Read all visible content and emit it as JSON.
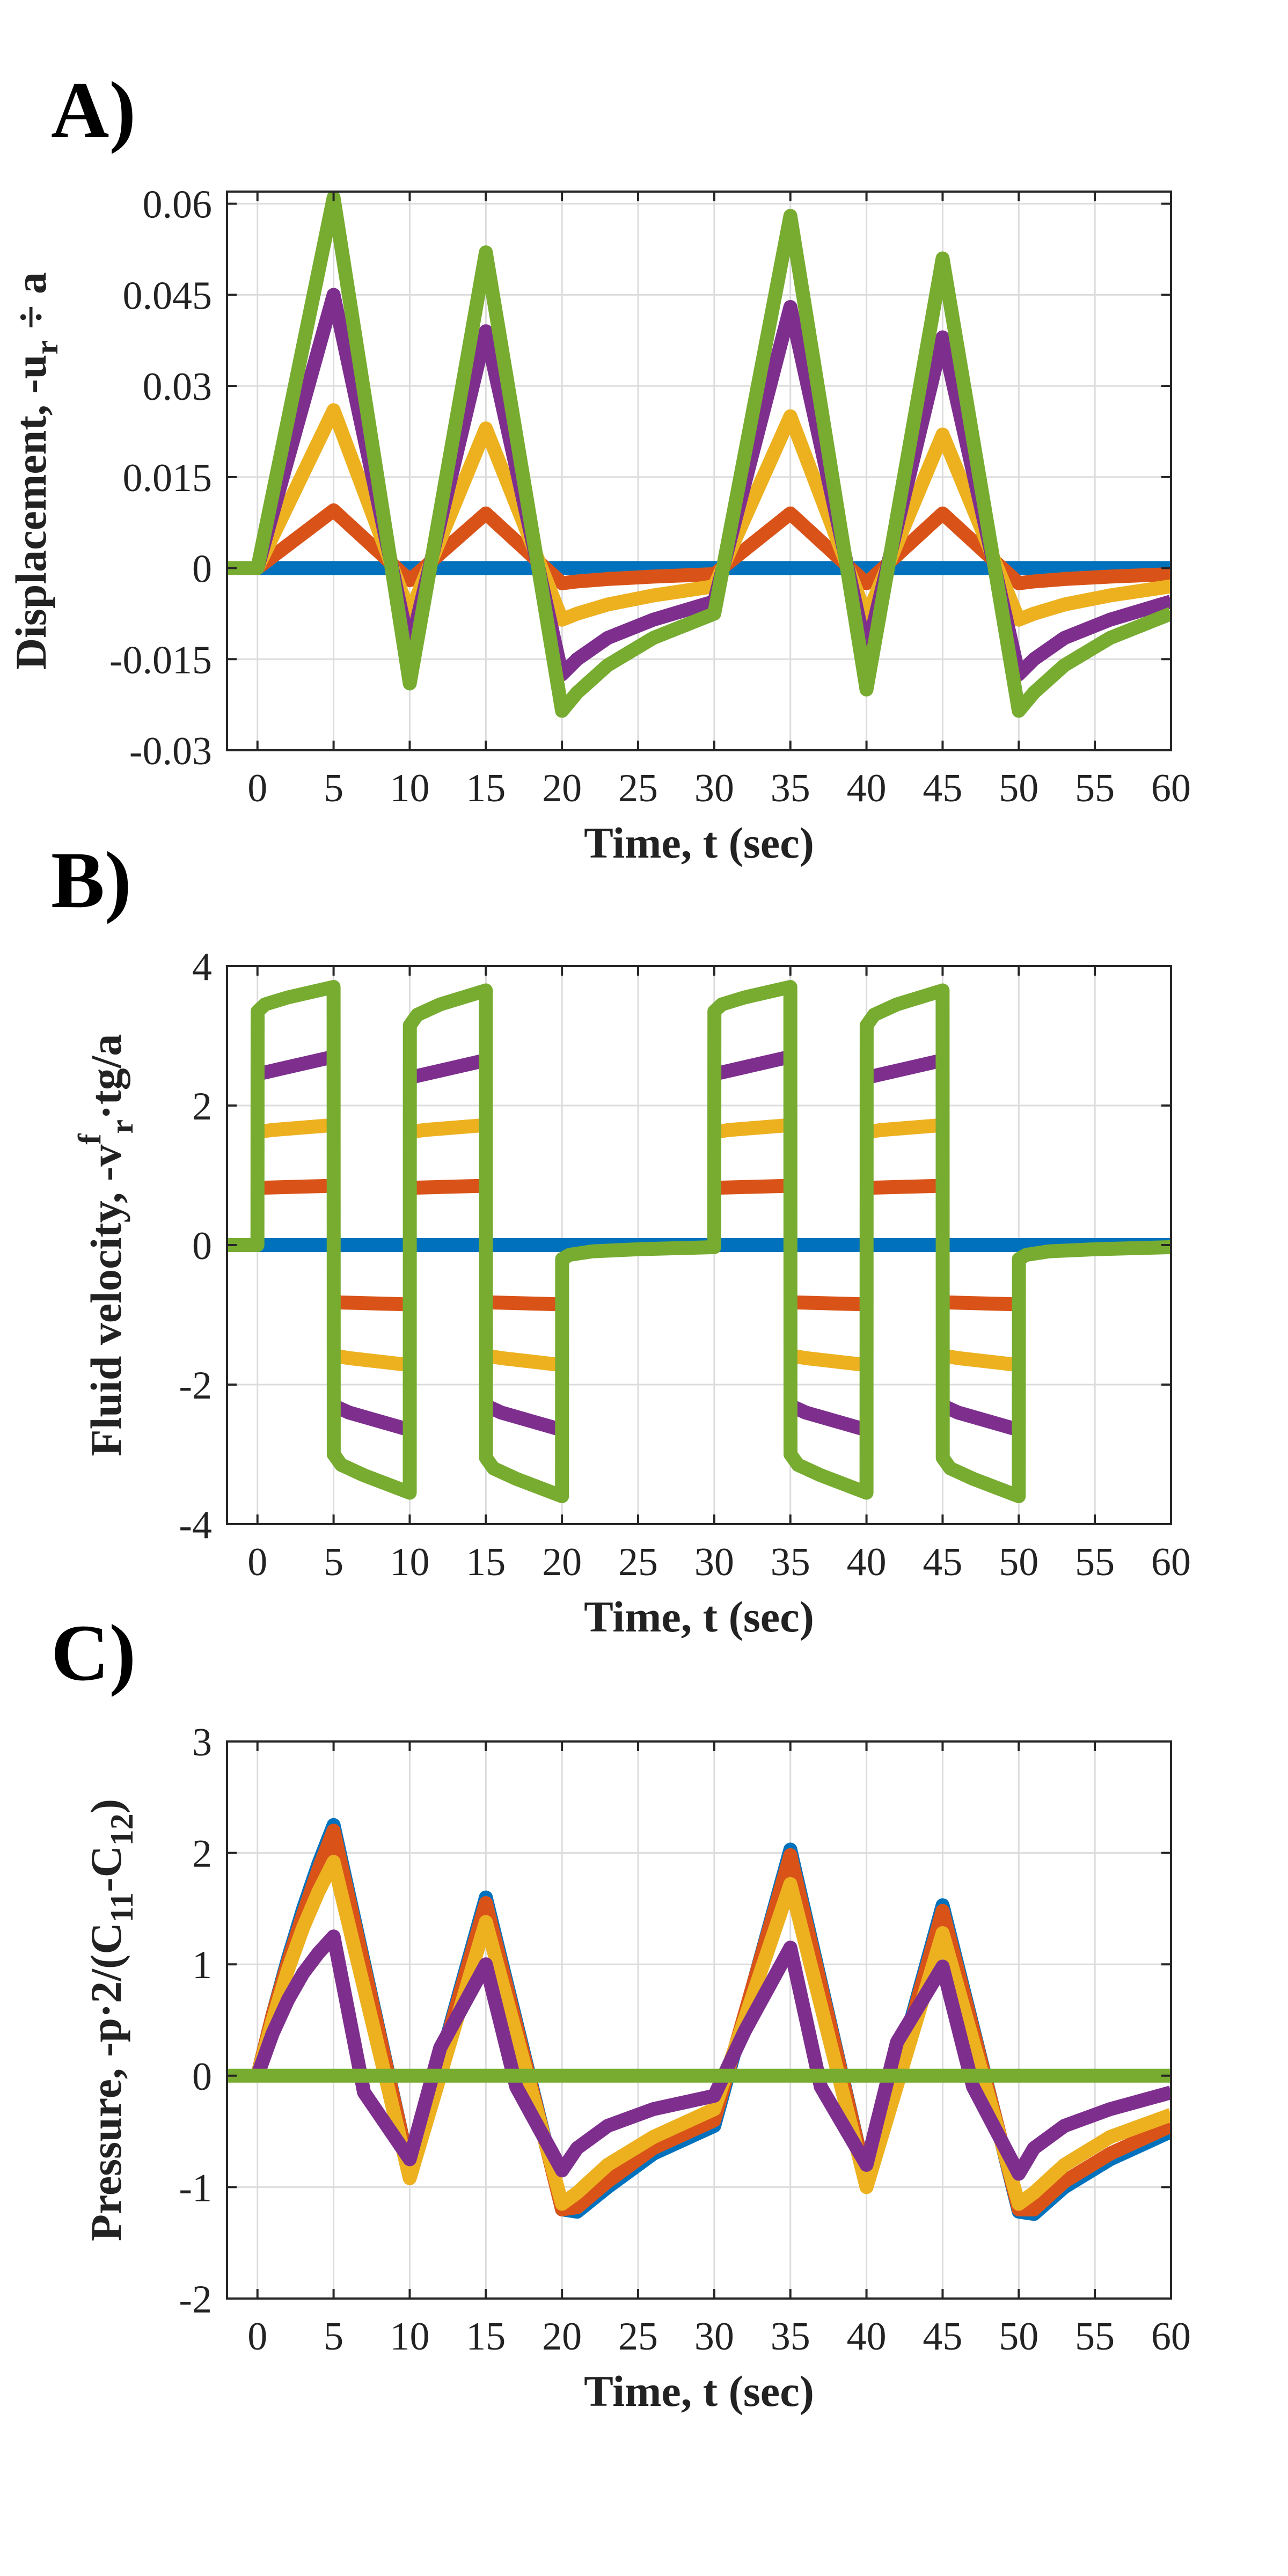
{
  "chart_data": [
    {
      "panel": "A)",
      "type": "line",
      "xlabel": "Time, t (sec)",
      "ylabel": {
        "main": "Displacement, -u",
        "sub": "r",
        "tail": " ÷ a"
      },
      "xlim": [
        -2,
        60
      ],
      "ylim": [
        -0.03,
        0.062
      ],
      "xticks": [
        0,
        5,
        10,
        15,
        20,
        25,
        30,
        35,
        40,
        45,
        50,
        55,
        60
      ],
      "yticks": [
        -0.03,
        -0.015,
        0,
        0.015,
        0.03,
        0.045,
        0.06
      ],
      "ytick_labels": [
        "-0.03",
        "-0.015",
        "0",
        "0.015",
        "0.03",
        "0.045",
        "0.06"
      ],
      "grid": true,
      "series": [
        {
          "color": "#0072BD",
          "x": [
            -2,
            60
          ],
          "y": [
            0,
            0
          ]
        },
        {
          "color": "#D95319",
          "x": [
            -2,
            0,
            5,
            10,
            15,
            20,
            21,
            23,
            26,
            30,
            35,
            40,
            45,
            50,
            51,
            53,
            56,
            60
          ],
          "y": [
            0,
            0,
            0.0095,
            -0.002,
            0.009,
            -0.0025,
            -0.0022,
            -0.0018,
            -0.0014,
            -0.001,
            0.009,
            -0.0025,
            0.009,
            -0.0025,
            -0.0022,
            -0.0018,
            -0.0014,
            -0.001
          ]
        },
        {
          "color": "#EDB120",
          "x": [
            -2,
            0,
            5,
            10,
            15,
            20,
            21,
            23,
            26,
            30,
            35,
            40,
            45,
            50,
            51,
            53,
            56,
            60
          ],
          "y": [
            0,
            0,
            0.026,
            -0.0075,
            0.023,
            -0.0085,
            -0.0075,
            -0.006,
            -0.0045,
            -0.003,
            0.025,
            -0.008,
            0.022,
            -0.0085,
            -0.0075,
            -0.006,
            -0.0045,
            -0.003
          ]
        },
        {
          "color": "#7E2F8E",
          "x": [
            -2,
            0,
            5,
            10,
            15,
            20,
            21,
            23,
            26,
            30,
            35,
            40,
            45,
            50,
            51,
            53,
            56,
            60
          ],
          "y": [
            0,
            0,
            0.045,
            -0.0135,
            0.039,
            -0.0175,
            -0.015,
            -0.0115,
            -0.0085,
            -0.0055,
            0.043,
            -0.014,
            0.038,
            -0.0175,
            -0.015,
            -0.0115,
            -0.0085,
            -0.0055
          ]
        },
        {
          "color": "#77AC30",
          "x": [
            -2,
            0,
            5,
            10,
            15,
            20,
            21,
            23,
            26,
            30,
            35,
            40,
            45,
            50,
            51,
            53,
            56,
            60
          ],
          "y": [
            0,
            0,
            0.061,
            -0.019,
            0.052,
            -0.0235,
            -0.0205,
            -0.016,
            -0.0115,
            -0.0075,
            0.058,
            -0.02,
            0.051,
            -0.0235,
            -0.0205,
            -0.016,
            -0.0115,
            -0.0075
          ]
        }
      ]
    },
    {
      "panel": "B)",
      "type": "line",
      "xlabel": "Time, t (sec)",
      "ylabel": {
        "main": "Fluid velocity, -v",
        "sup": "f",
        "sub": "r",
        "tail": "·tg/a"
      },
      "xlim": [
        -2,
        60
      ],
      "ylim": [
        -4,
        4
      ],
      "xticks": [
        0,
        5,
        10,
        15,
        20,
        25,
        30,
        35,
        40,
        45,
        50,
        55,
        60
      ],
      "yticks": [
        -4,
        -2,
        0,
        2,
        4
      ],
      "ytick_labels": [
        "-4",
        "-2",
        "0",
        "2",
        "4"
      ],
      "grid": true,
      "series": [
        {
          "color": "#0072BD",
          "x": [
            -2,
            60
          ],
          "y": [
            0,
            0
          ]
        },
        {
          "color": "#D95319",
          "segments": [
            {
              "x": [
                0,
                5
              ],
              "y": [
                0.82,
                0.85
              ]
            },
            {
              "x": [
                5,
                10
              ],
              "y": [
                -0.82,
                -0.85
              ]
            },
            {
              "x": [
                10,
                15
              ],
              "y": [
                0.82,
                0.85
              ]
            },
            {
              "x": [
                15,
                20
              ],
              "y": [
                -0.82,
                -0.85
              ]
            },
            {
              "x": [
                30,
                35
              ],
              "y": [
                0.82,
                0.85
              ]
            },
            {
              "x": [
                35,
                40
              ],
              "y": [
                -0.82,
                -0.85
              ]
            },
            {
              "x": [
                40,
                45
              ],
              "y": [
                0.82,
                0.85
              ]
            },
            {
              "x": [
                45,
                50
              ],
              "y": [
                -0.82,
                -0.85
              ]
            }
          ]
        },
        {
          "color": "#EDB120",
          "segments": [
            {
              "x": [
                0,
                1,
                5
              ],
              "y": [
                1.62,
                1.65,
                1.72
              ]
            },
            {
              "x": [
                5,
                6,
                10
              ],
              "y": [
                -1.58,
                -1.62,
                -1.72
              ]
            },
            {
              "x": [
                10,
                11,
                15
              ],
              "y": [
                1.62,
                1.65,
                1.72
              ]
            },
            {
              "x": [
                15,
                16,
                20
              ],
              "y": [
                -1.58,
                -1.62,
                -1.72
              ]
            },
            {
              "x": [
                30,
                31,
                35
              ],
              "y": [
                1.62,
                1.65,
                1.72
              ]
            },
            {
              "x": [
                35,
                36,
                40
              ],
              "y": [
                -1.58,
                -1.62,
                -1.72
              ]
            },
            {
              "x": [
                40,
                41,
                45
              ],
              "y": [
                1.62,
                1.65,
                1.72
              ]
            },
            {
              "x": [
                45,
                46,
                50
              ],
              "y": [
                -1.58,
                -1.62,
                -1.72
              ]
            }
          ]
        },
        {
          "color": "#7E2F8E",
          "segments": [
            {
              "x": [
                0,
                1,
                5
              ],
              "y": [
                2.45,
                2.5,
                2.7
              ]
            },
            {
              "x": [
                5,
                6,
                10
              ],
              "y": [
                -2.3,
                -2.4,
                -2.65
              ]
            },
            {
              "x": [
                10,
                11,
                15
              ],
              "y": [
                2.4,
                2.45,
                2.65
              ]
            },
            {
              "x": [
                15,
                16,
                20
              ],
              "y": [
                -2.3,
                -2.4,
                -2.65
              ]
            },
            {
              "x": [
                30,
                31,
                35
              ],
              "y": [
                2.45,
                2.5,
                2.7
              ]
            },
            {
              "x": [
                35,
                36,
                40
              ],
              "y": [
                -2.3,
                -2.4,
                -2.65
              ]
            },
            {
              "x": [
                40,
                41,
                45
              ],
              "y": [
                2.4,
                2.45,
                2.65
              ]
            },
            {
              "x": [
                45,
                46,
                50
              ],
              "y": [
                -2.3,
                -2.4,
                -2.65
              ]
            }
          ]
        },
        {
          "color": "#77AC30",
          "x": [
            -2,
            0,
            0.01,
            0.5,
            2,
            5,
            5.01,
            5.5,
            7,
            10,
            10.01,
            10.5,
            12,
            15,
            15.01,
            15.5,
            17,
            20,
            20.01,
            20.5,
            22,
            25,
            30,
            30.01,
            30.5,
            32,
            35,
            35.01,
            35.5,
            37,
            40,
            40.01,
            40.5,
            42,
            45,
            45.01,
            45.5,
            47,
            50,
            50.01,
            50.5,
            52,
            55,
            60
          ],
          "y": [
            0,
            0,
            3.35,
            3.45,
            3.55,
            3.7,
            -3.0,
            -3.15,
            -3.3,
            -3.55,
            3.15,
            3.3,
            3.45,
            3.65,
            -3.05,
            -3.2,
            -3.35,
            -3.6,
            -0.2,
            -0.14,
            -0.09,
            -0.06,
            -0.03,
            3.35,
            3.45,
            3.55,
            3.7,
            -3.0,
            -3.15,
            -3.3,
            -3.55,
            3.15,
            3.3,
            3.45,
            3.65,
            -3.05,
            -3.2,
            -3.35,
            -3.6,
            -0.2,
            -0.14,
            -0.09,
            -0.06,
            -0.03
          ]
        }
      ]
    },
    {
      "panel": "C)",
      "type": "line",
      "xlabel": "Time, t (sec)",
      "ylabel": {
        "main": "Pressure, -p·2/(C",
        "sub": "11",
        "mid": "-C",
        "sub2": "12",
        "tail": ")"
      },
      "xlim": [
        -2,
        60
      ],
      "ylim": [
        -2,
        3
      ],
      "xticks": [
        0,
        5,
        10,
        15,
        20,
        25,
        30,
        35,
        40,
        45,
        50,
        55,
        60
      ],
      "yticks": [
        -2,
        -1,
        0,
        1,
        2,
        3
      ],
      "ytick_labels": [
        "-2",
        "-1",
        "0",
        "1",
        "2",
        "3"
      ],
      "grid": true,
      "series": [
        {
          "color": "#0072BD",
          "x": [
            0,
            1,
            2,
            3,
            4,
            5,
            10,
            15,
            20,
            21,
            23,
            26,
            30,
            35,
            40,
            45,
            50,
            51,
            53,
            56,
            60
          ],
          "y": [
            0,
            0.55,
            1.05,
            1.5,
            1.9,
            2.25,
            -0.85,
            1.6,
            -1.2,
            -1.22,
            -1.0,
            -0.7,
            -0.45,
            2.03,
            -0.95,
            1.53,
            -1.22,
            -1.24,
            -1.0,
            -0.75,
            -0.5
          ]
        },
        {
          "color": "#D95319",
          "x": [
            0,
            1,
            2,
            3,
            4,
            5,
            10,
            15,
            20,
            21,
            23,
            26,
            30,
            35,
            40,
            45,
            50,
            51,
            53,
            56,
            60
          ],
          "y": [
            0,
            0.55,
            1.02,
            1.45,
            1.85,
            2.2,
            -0.85,
            1.55,
            -1.2,
            -1.18,
            -0.95,
            -0.65,
            -0.4,
            1.98,
            -0.95,
            1.48,
            -1.2,
            -1.2,
            -0.95,
            -0.7,
            -0.45
          ]
        },
        {
          "color": "#EDB120",
          "x": [
            0,
            1,
            2,
            3,
            4,
            5,
            10,
            15,
            20,
            21,
            23,
            26,
            30,
            35,
            40,
            45,
            50,
            51,
            53,
            56,
            60
          ],
          "y": [
            0,
            0.5,
            0.95,
            1.33,
            1.65,
            1.92,
            -0.92,
            1.38,
            -1.15,
            -1.05,
            -0.8,
            -0.55,
            -0.3,
            1.72,
            -1.0,
            1.28,
            -1.15,
            -1.05,
            -0.8,
            -0.55,
            -0.35
          ]
        },
        {
          "color": "#7E2F8E",
          "x": [
            0,
            1,
            2,
            3,
            4,
            5,
            7,
            10,
            12,
            15,
            17,
            20,
            21,
            23,
            26,
            30,
            32,
            35,
            37,
            40,
            42,
            45,
            47,
            50,
            51,
            53,
            56,
            60
          ],
          "y": [
            0,
            0.38,
            0.68,
            0.92,
            1.1,
            1.25,
            -0.15,
            -0.75,
            0.25,
            1.0,
            -0.1,
            -0.85,
            -0.65,
            -0.45,
            -0.3,
            -0.18,
            0.4,
            1.15,
            -0.1,
            -0.8,
            0.3,
            0.98,
            -0.1,
            -0.88,
            -0.65,
            -0.45,
            -0.3,
            -0.15
          ]
        },
        {
          "color": "#77AC30",
          "x": [
            -2,
            60
          ],
          "y": [
            0,
            0
          ]
        }
      ]
    }
  ]
}
